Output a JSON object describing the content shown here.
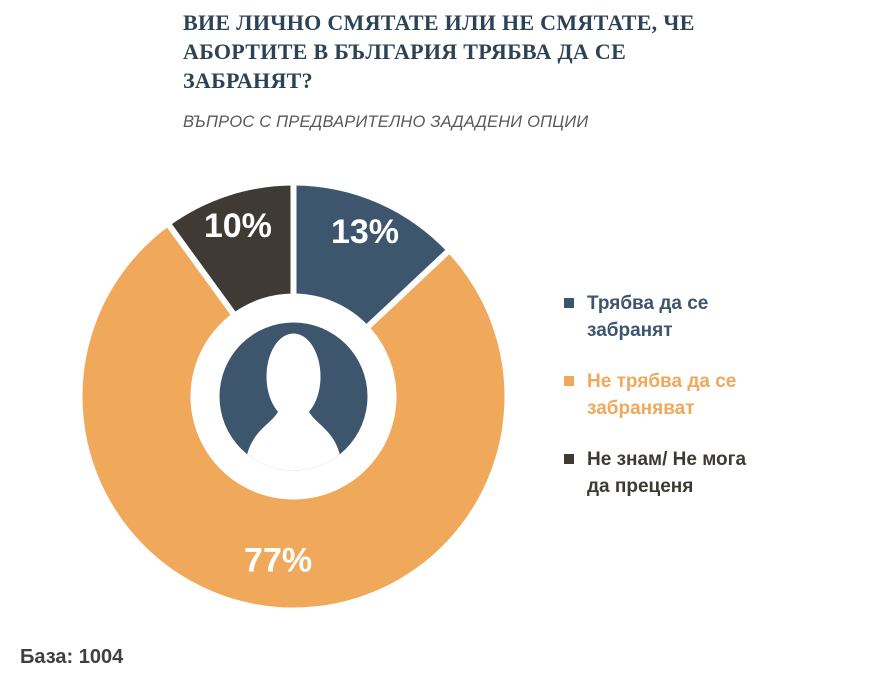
{
  "title": {
    "lines": [
      "ВИЕ ЛИЧНО СМЯТАТЕ ИЛИ НЕ СМЯТАТЕ, ЧЕ",
      "АБОРТИТЕ В БЪЛГАРИЯ ТРЯБВА ДА СЕ",
      "ЗАБРАНЯТ?"
    ],
    "color": "#2c4356"
  },
  "subtitle": {
    "text": "ВЪПРОС С ПРЕДВАРИТЕЛНО ЗАДАДЕНИ ОПЦИИ",
    "color": "#595959"
  },
  "chart_data": {
    "type": "pie",
    "variant": "donut",
    "title": "ВИЕ ЛИЧНО СМЯТАТЕ ИЛИ НЕ СМЯТАТЕ, ЧЕ АБОРТИТЕ В БЪЛГАРИЯ ТРЯБВА ДА СЕ ЗАБРАНЯТ?",
    "subtitle": "ВЪПРОС С ПРЕДВАРИТЕЛНО ЗАДАДЕНИ ОПЦИИ",
    "unit": "%",
    "base_n": 1004,
    "segments": [
      {
        "label": "Трябва да се забранят",
        "value": 13,
        "display": "13%",
        "color": "#3d566d"
      },
      {
        "label": "Не трябва да се забраняват",
        "value": 77,
        "display": "77%",
        "color": "#f0a85a"
      },
      {
        "label": "Не знам/ Не мога да преценя",
        "value": 10,
        "display": "10%",
        "color": "#403a35"
      }
    ],
    "layout": {
      "start_angle_deg": 0,
      "clockwise_from_top": true,
      "legend_position": "right",
      "center_icon": "person-icon",
      "outer_radius": 211,
      "inner_radius": 103,
      "icon_radius": 74,
      "icon_color": "#3d566d",
      "label_radii": [
        180,
        164,
        180
      ],
      "gap_color": "#ffffff",
      "gap_width": 5
    }
  },
  "legend": {
    "items": [
      {
        "lines": [
          "Трябва да се",
          "забранят"
        ],
        "color": "#3d566d"
      },
      {
        "lines": [
          "Не трябва да се",
          "забраняват"
        ],
        "color": "#f0a85a"
      },
      {
        "lines": [
          "Не знам/ Не мога",
          "да преценя"
        ],
        "color": "#403a35"
      }
    ]
  },
  "base_note": {
    "text": "База: 1004",
    "color": "#404040"
  }
}
